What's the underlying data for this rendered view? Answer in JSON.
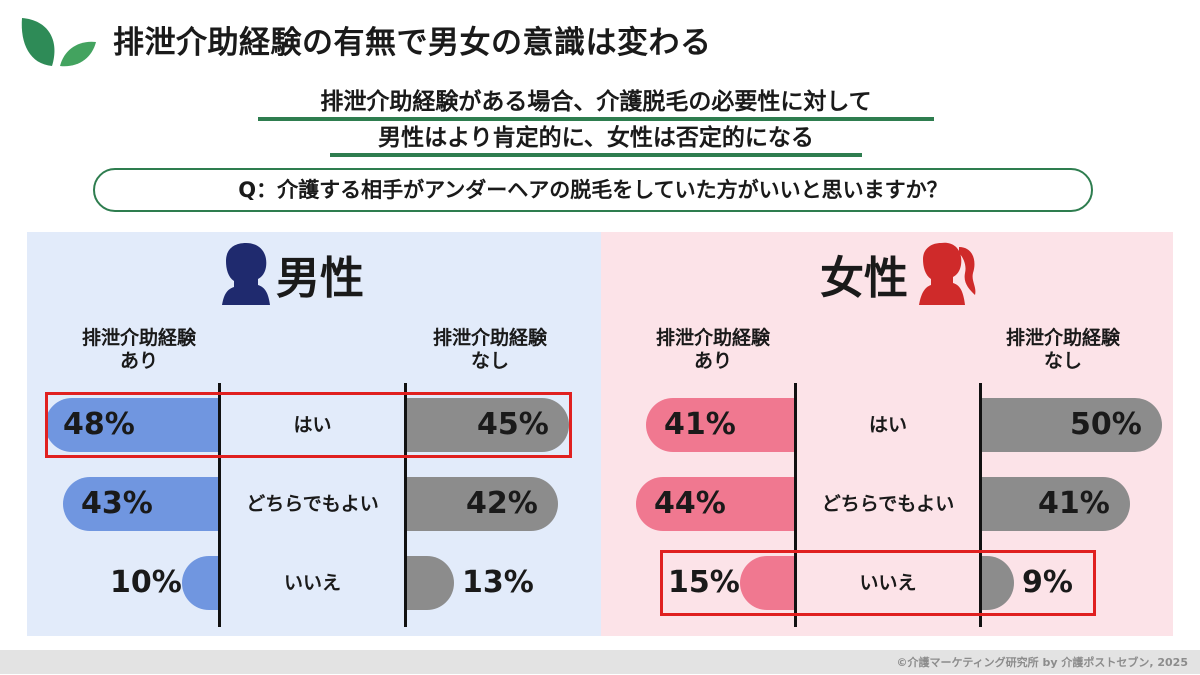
{
  "header": {
    "title": "排泄介助経験の有無で男女の意識は変わる",
    "subtitle_line1": "排泄介助経験がある場合、介護脱毛の必要性に対して",
    "subtitle_line2": "男性はより肯定的に、女性は否定的になる",
    "question": "Q：介護する相手がアンダーヘアの脱毛をしていた方がいいと思いますか？"
  },
  "footer": {
    "credit": "©介護マーケティング研究所 by 介護ポストセブン, 2025"
  },
  "icons": {
    "logo": "leaf-icon",
    "male": "male-silhouette-icon",
    "female": "female-silhouette-icon"
  },
  "colors": {
    "green": "#2e7d4f",
    "male_bar": "#7096e0",
    "female_bar": "#f07890",
    "gray_bar": "#8c8c8c",
    "male_bg": "#e2ebfa",
    "female_bg": "#fce3e8",
    "highlight": "#e02020"
  },
  "chart_data": [
    {
      "type": "bar",
      "title": "男性",
      "categories": [
        "はい",
        "どちらでもよい",
        "いいえ"
      ],
      "series": [
        {
          "name": "排泄介助経験あり",
          "values": [
            48,
            43,
            10
          ],
          "labels": [
            "48%",
            "43%",
            "10%"
          ]
        },
        {
          "name": "排泄介助経験なし",
          "values": [
            45,
            42,
            13
          ],
          "labels": [
            "45%",
            "42%",
            "13%"
          ]
        }
      ],
      "highlight_category": "はい"
    },
    {
      "type": "bar",
      "title": "女性",
      "categories": [
        "はい",
        "どちらでもよい",
        "いいえ"
      ],
      "series": [
        {
          "name": "排泄介助経験あり",
          "values": [
            41,
            44,
            15
          ],
          "labels": [
            "41%",
            "44%",
            "15%"
          ]
        },
        {
          "name": "排泄介助経験なし",
          "values": [
            50,
            41,
            9
          ],
          "labels": [
            "50%",
            "41%",
            "9%"
          ]
        }
      ],
      "highlight_category": "いいえ"
    }
  ]
}
